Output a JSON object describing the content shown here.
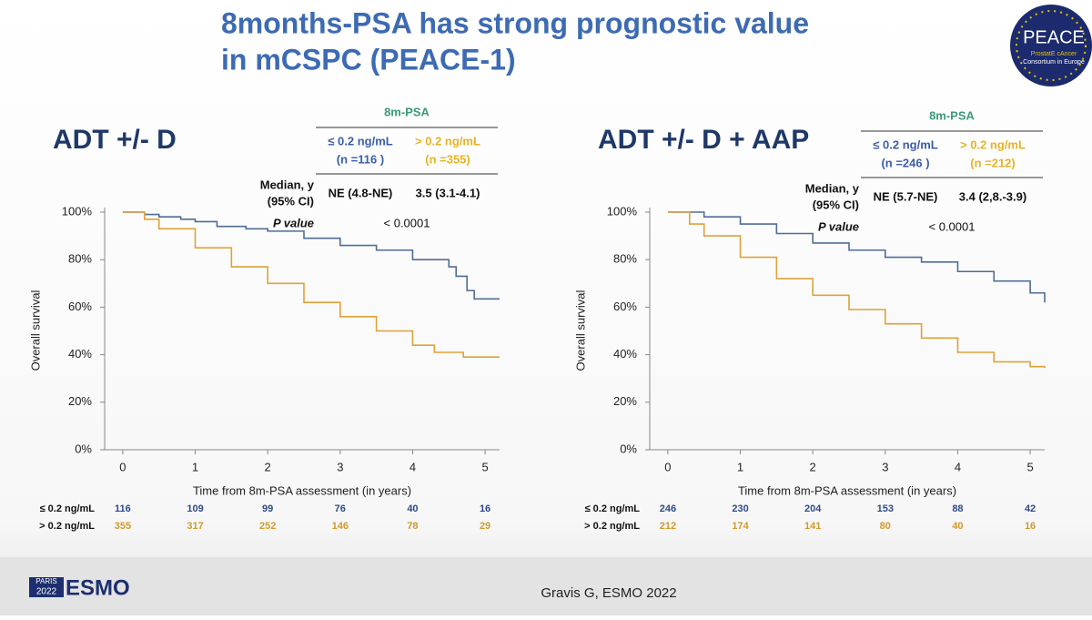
{
  "slide": {
    "title": [
      "8months-PSA has strong prognostic value",
      "in mCSPC (PEACE-1)"
    ],
    "logo": [
      "PEACE",
      "ProstatE cAncer",
      "Consortium in Europe"
    ],
    "event_logo": [
      "PARIS",
      "2022",
      "ESMO"
    ],
    "footer": "Gravis G, ESMO 2022"
  },
  "chart_data": [
    {
      "type": "line",
      "step": true,
      "title": "ADT +/- D",
      "table_title": "8m-PSA",
      "median_label": [
        "Median, y",
        "(95% CI)"
      ],
      "p_label": "P value",
      "p_value": "< 0.0001",
      "x_label": "Time from 8m-PSA assessment (in years)",
      "y_label": "Overall survival",
      "xlim": [
        -0.25,
        5.2
      ],
      "xticks": [
        0,
        1,
        2,
        3,
        4,
        5
      ],
      "ylim": [
        0,
        100
      ],
      "yticks": [
        {
          "value": 0,
          "label": "0%"
        },
        {
          "value": 20,
          "label": "20%"
        },
        {
          "value": 40,
          "label": "40%"
        },
        {
          "value": 60,
          "label": "60%"
        },
        {
          "value": 80,
          "label": "80%"
        },
        {
          "value": 100,
          "label": "100%"
        }
      ],
      "series": [
        {
          "name": "≤ 0.2 ng/mL",
          "n_label": "(n =116 )",
          "median": "NE (4.8-NE)",
          "color": "#4f6d96",
          "x": [
            0,
            0.3,
            0.5,
            0.8,
            1,
            1.3,
            1.7,
            2,
            2.5,
            3,
            3.5,
            4,
            4.5,
            4.6,
            4.75,
            4.85,
            5.2
          ],
          "values": [
            100,
            99,
            98,
            97,
            96,
            94,
            93,
            92,
            89,
            86,
            84,
            80,
            77,
            73,
            67,
            63.5,
            63.5
          ],
          "at_risk": [
            116,
            109,
            99,
            76,
            40,
            16
          ]
        },
        {
          "name": "> 0.2 ng/mL",
          "n_label": "(n =355)",
          "median": "3.5 (3.1-4.1)",
          "color": "#dda23a",
          "x": [
            0,
            0.3,
            0.5,
            1,
            1.5,
            2,
            2.5,
            3,
            3.5,
            4,
            4.3,
            4.7,
            5.2
          ],
          "values": [
            100,
            97,
            93,
            85,
            77,
            70,
            62,
            56,
            50,
            44,
            41,
            39,
            39
          ],
          "at_risk": [
            355,
            317,
            252,
            146,
            78,
            29
          ]
        }
      ]
    },
    {
      "type": "line",
      "step": true,
      "title": "ADT +/- D + AAP",
      "table_title": "8m-PSA",
      "median_label": [
        "Median, y",
        "(95% CI)"
      ],
      "p_label": "P value",
      "p_value": "< 0.0001",
      "x_label": "Time from 8m-PSA assessment (in years)",
      "y_label": "Overall survival",
      "xlim": [
        -0.25,
        5.2
      ],
      "xticks": [
        0,
        1,
        2,
        3,
        4,
        5
      ],
      "ylim": [
        0,
        100
      ],
      "yticks": [
        {
          "value": 0,
          "label": "0%"
        },
        {
          "value": 20,
          "label": "20%"
        },
        {
          "value": 40,
          "label": "40%"
        },
        {
          "value": 60,
          "label": "60%"
        },
        {
          "value": 80,
          "label": "80%"
        },
        {
          "value": 100,
          "label": "100%"
        }
      ],
      "series": [
        {
          "name": "≤ 0.2 ng/mL",
          "n_label": "(n =246 )",
          "median": "NE (5.7-NE)",
          "color": "#4f6d96",
          "x": [
            0,
            0.5,
            1,
            1.5,
            2,
            2.5,
            3,
            3.5,
            4,
            4.5,
            5,
            5.2
          ],
          "values": [
            100,
            98,
            95,
            91,
            87,
            84,
            81,
            79,
            75,
            71,
            66,
            62
          ],
          "at_risk": [
            246,
            230,
            204,
            153,
            88,
            42
          ]
        },
        {
          "name": "> 0.2 ng/mL",
          "n_label": "(n =212)",
          "median": "3.4 (2,8.-3.9)",
          "color": "#dda23a",
          "x": [
            0,
            0.3,
            0.5,
            1,
            1.5,
            2,
            2.5,
            3,
            3.5,
            4,
            4.5,
            5,
            5.2
          ],
          "values": [
            100,
            95,
            90,
            81,
            72,
            65,
            59,
            53,
            47,
            41,
            37,
            35,
            34.5
          ],
          "at_risk": [
            212,
            174,
            141,
            80,
            40,
            16
          ]
        }
      ]
    }
  ]
}
